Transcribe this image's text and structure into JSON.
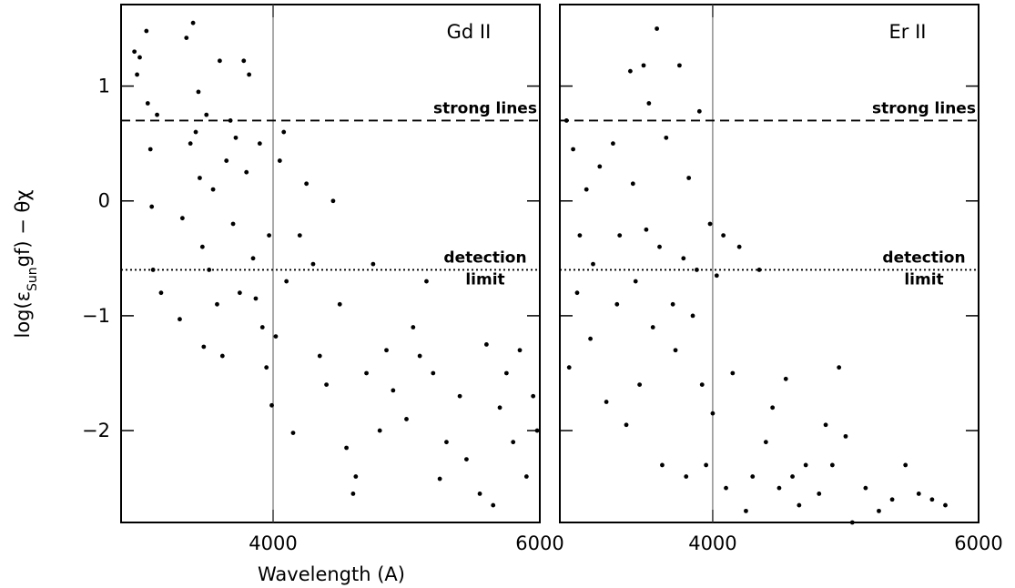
{
  "xlabel": "Wavelength (A)",
  "ylabel": {
    "start": "log(ε",
    "sub": "Sun",
    "end": "gf) − θχ"
  },
  "chart_data": [
    {
      "type": "scatter",
      "title": "Gd II",
      "color": "#000000",
      "xlim": [
        2860,
        6000
      ],
      "ylim": [
        -2.8,
        1.71
      ],
      "xticks": [
        4000,
        6000
      ],
      "yticks": [
        {
          "value": -2,
          "label": "−2"
        },
        {
          "value": -1,
          "label": "−1"
        },
        0,
        1
      ],
      "vline": 4000,
      "hlines": [
        {
          "value": 0.7,
          "style": "dashed",
          "label": [
            "strong lines"
          ]
        },
        {
          "value": -0.6,
          "style": "dotted",
          "label": [
            "detection",
            "limit"
          ]
        }
      ],
      "x": [
        2960,
        2980,
        3000,
        3050,
        3060,
        3080,
        3090,
        3100,
        3130,
        3160,
        3300,
        3320,
        3350,
        3380,
        3400,
        3420,
        3440,
        3450,
        3470,
        3480,
        3500,
        3520,
        3550,
        3580,
        3600,
        3620,
        3650,
        3680,
        3700,
        3720,
        3750,
        3780,
        3800,
        3820,
        3850,
        3870,
        3900,
        3920,
        3950,
        3970,
        3990,
        4020,
        4050,
        4080,
        4100,
        4150,
        4200,
        4250,
        4300,
        4350,
        4400,
        4450,
        4500,
        4550,
        4600,
        4620,
        4700,
        4750,
        4800,
        4850,
        4900,
        5000,
        5050,
        5100,
        5150,
        5200,
        5250,
        5300,
        5400,
        5450,
        5550,
        5600,
        5650,
        5700,
        5750,
        5800,
        5850,
        5900,
        5950,
        5980
      ],
      "y": [
        1.3,
        1.1,
        1.25,
        1.48,
        0.85,
        0.45,
        -0.05,
        -0.6,
        0.75,
        -0.8,
        -1.03,
        -0.15,
        1.42,
        0.5,
        1.55,
        0.6,
        0.95,
        0.2,
        -0.4,
        -1.27,
        0.75,
        -0.6,
        0.1,
        -0.9,
        1.22,
        -1.35,
        0.35,
        0.7,
        -0.2,
        0.55,
        -0.8,
        1.22,
        0.25,
        1.1,
        -0.5,
        -0.85,
        0.5,
        -1.1,
        -1.45,
        -0.3,
        -1.78,
        -1.18,
        0.35,
        0.6,
        -0.7,
        -2.02,
        -0.3,
        0.15,
        -0.55,
        -1.35,
        -1.6,
        0.0,
        -0.9,
        -2.15,
        -2.55,
        -2.4,
        -1.5,
        -0.55,
        -2.0,
        -1.3,
        -1.65,
        -1.9,
        -1.1,
        -1.35,
        -0.7,
        -1.5,
        -2.42,
        -2.1,
        -1.7,
        -2.25,
        -2.55,
        -1.25,
        -2.65,
        -1.8,
        -1.5,
        -2.1,
        -1.3,
        -2.4,
        -1.7,
        -2.0
      ]
    },
    {
      "type": "scatter",
      "title": "Er II",
      "color": "#000000",
      "xlim": [
        2850,
        6000
      ],
      "ylim": [
        -2.8,
        1.71
      ],
      "xticks": [
        4000,
        6000
      ],
      "yticks": [
        -2,
        -1,
        0,
        1
      ],
      "vline": 4000,
      "hlines": [
        {
          "value": 0.7,
          "style": "dashed",
          "label": [
            "strong lines"
          ]
        },
        {
          "value": -0.6,
          "style": "dotted",
          "label": [
            "detection",
            "limit"
          ]
        }
      ],
      "x": [
        2900,
        2920,
        2950,
        2980,
        3000,
        3050,
        3080,
        3100,
        3150,
        3200,
        3250,
        3280,
        3300,
        3350,
        3380,
        3400,
        3420,
        3450,
        3480,
        3500,
        3520,
        3550,
        3580,
        3600,
        3620,
        3650,
        3700,
        3720,
        3750,
        3780,
        3800,
        3820,
        3850,
        3880,
        3900,
        3920,
        3950,
        3980,
        4000,
        4030,
        4080,
        4100,
        4150,
        4200,
        4250,
        4300,
        4350,
        4400,
        4450,
        4500,
        4550,
        4600,
        4650,
        4700,
        4800,
        4850,
        4900,
        4950,
        5000,
        5050,
        5150,
        5250,
        5350,
        5450,
        5550,
        5650,
        5750
      ],
      "y": [
        0.7,
        -1.45,
        0.45,
        -0.8,
        -0.3,
        0.1,
        -1.2,
        -0.55,
        0.3,
        -1.75,
        0.5,
        -0.9,
        -0.3,
        -1.95,
        1.13,
        0.15,
        -0.7,
        -1.6,
        1.18,
        -0.25,
        0.85,
        -1.1,
        1.5,
        -0.4,
        -2.3,
        0.55,
        -0.9,
        -1.3,
        1.18,
        -0.5,
        -2.4,
        0.2,
        -1.0,
        -0.6,
        0.78,
        -1.6,
        -2.3,
        -0.2,
        -1.85,
        -0.65,
        -0.3,
        -2.5,
        -1.5,
        -0.4,
        -2.7,
        -2.4,
        -0.6,
        -2.1,
        -1.8,
        -2.5,
        -1.55,
        -2.4,
        -2.65,
        -2.3,
        -2.55,
        -1.95,
        -2.3,
        -1.45,
        -2.05,
        -2.8,
        -2.5,
        -2.7,
        -2.6,
        -2.3,
        -2.55,
        -2.6,
        -2.65
      ]
    }
  ]
}
